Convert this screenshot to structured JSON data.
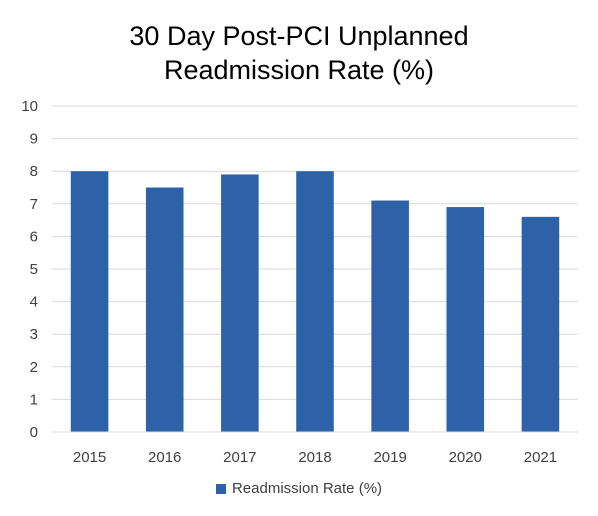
{
  "chart_data": {
    "type": "bar",
    "title_lines": [
      "30 Day Post-PCI Unplanned",
      "Readmission Rate (%)"
    ],
    "categories": [
      "2015",
      "2016",
      "2017",
      "2018",
      "2019",
      "2020",
      "2021"
    ],
    "series": [
      {
        "name": "Readmission Rate (%)",
        "values": [
          8.0,
          7.5,
          7.9,
          8.0,
          7.1,
          6.9,
          6.6
        ],
        "color": "#2e62a8"
      }
    ],
    "ylim": [
      0,
      10
    ],
    "yticks": [
      "0",
      "1",
      "2",
      "3",
      "4",
      "5",
      "6",
      "7",
      "8",
      "9",
      "10"
    ],
    "grid": true,
    "legend_position": "bottom"
  }
}
